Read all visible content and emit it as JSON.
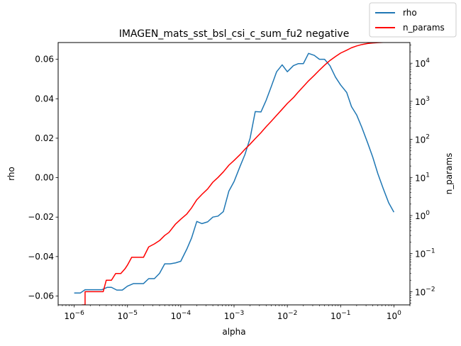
{
  "chart_data": {
    "type": "line",
    "title": "IMAGEN_mats_sst_bsl_csi_c_sum_fu2 negative",
    "xlabel": "alpha",
    "ylabel": "rho",
    "y2label": "n_params",
    "xscale": "log",
    "y2scale": "log",
    "xlim": [
      5e-07,
      2
    ],
    "ylim": [
      -0.0645,
      0.0685
    ],
    "y2lim": [
      0.0045,
      35000
    ],
    "grid": false,
    "legend_position": "top-right",
    "x_ticks": [
      {
        "base": "10",
        "exp": "−6"
      },
      {
        "base": "10",
        "exp": "−5"
      },
      {
        "base": "10",
        "exp": "−4"
      },
      {
        "base": "10",
        "exp": "−3"
      },
      {
        "base": "10",
        "exp": "−2"
      },
      {
        "base": "10",
        "exp": "−1"
      },
      {
        "base": "10",
        "exp": "0"
      }
    ],
    "y_ticks": [
      "0.06",
      "0.04",
      "0.02",
      "0.00",
      "−0.02",
      "−0.04",
      "−0.06"
    ],
    "y2_ticks": [
      {
        "base": "10",
        "exp": "4"
      },
      {
        "base": "10",
        "exp": "3"
      },
      {
        "base": "10",
        "exp": "2"
      },
      {
        "base": "10",
        "exp": "1"
      },
      {
        "base": "10",
        "exp": "0"
      },
      {
        "base": "10",
        "exp": "−1"
      },
      {
        "base": "10",
        "exp": "−2"
      }
    ],
    "series": [
      {
        "name": "rho",
        "color": "#1f77b4",
        "axis": "left",
        "points": [
          [
            1e-06,
            -0.0585
          ],
          [
            1.3e-06,
            -0.0585
          ],
          [
            1.6e-06,
            -0.0568
          ],
          [
            2e-06,
            -0.0568
          ],
          [
            2.6e-06,
            -0.0568
          ],
          [
            3.3e-06,
            -0.0568
          ],
          [
            4.2e-06,
            -0.0556
          ],
          [
            5e-06,
            -0.0556
          ],
          [
            6.3e-06,
            -0.057
          ],
          [
            8e-06,
            -0.057
          ],
          [
            1e-05,
            -0.055
          ],
          [
            1.3e-05,
            -0.0537
          ],
          [
            1.6e-05,
            -0.0537
          ],
          [
            2e-05,
            -0.0537
          ],
          [
            2.5e-05,
            -0.0512
          ],
          [
            3.2e-05,
            -0.0512
          ],
          [
            4e-05,
            -0.0485
          ],
          [
            5e-05,
            -0.0437
          ],
          [
            6.3e-05,
            -0.0437
          ],
          [
            8e-05,
            -0.0432
          ],
          [
            0.0001,
            -0.0424
          ],
          [
            0.00013,
            -0.0362
          ],
          [
            0.00016,
            -0.0305
          ],
          [
            0.0002,
            -0.0222
          ],
          [
            0.00025,
            -0.0233
          ],
          [
            0.00032,
            -0.0224
          ],
          [
            0.0004,
            -0.02
          ],
          [
            0.0005,
            -0.0195
          ],
          [
            0.00063,
            -0.0172
          ],
          [
            0.0008,
            -0.0068
          ],
          [
            0.001,
            -0.002
          ],
          [
            0.0013,
            0.0058
          ],
          [
            0.0016,
            0.0117
          ],
          [
            0.002,
            0.02
          ],
          [
            0.0025,
            0.0335
          ],
          [
            0.0032,
            0.0333
          ],
          [
            0.004,
            0.0392
          ],
          [
            0.005,
            0.0462
          ],
          [
            0.0063,
            0.0537
          ],
          [
            0.008,
            0.0572
          ],
          [
            0.01,
            0.0537
          ],
          [
            0.013,
            0.0568
          ],
          [
            0.016,
            0.0578
          ],
          [
            0.02,
            0.0578
          ],
          [
            0.025,
            0.063
          ],
          [
            0.032,
            0.062
          ],
          [
            0.04,
            0.06
          ],
          [
            0.05,
            0.06
          ],
          [
            0.063,
            0.0568
          ],
          [
            0.08,
            0.051
          ],
          [
            0.1,
            0.047
          ],
          [
            0.13,
            0.0432
          ],
          [
            0.16,
            0.036
          ],
          [
            0.2,
            0.0318
          ],
          [
            0.25,
            0.0255
          ],
          [
            0.32,
            0.0178
          ],
          [
            0.4,
            0.0105
          ],
          [
            0.5,
            0.002
          ],
          [
            0.63,
            -0.0055
          ],
          [
            0.8,
            -0.0128
          ],
          [
            1.0,
            -0.0175
          ]
        ]
      },
      {
        "name": "n_params",
        "color": "#ff0000",
        "axis": "right",
        "points": [
          [
            1.4e-06,
            0.0045
          ],
          [
            1.6e-06,
            0.0045
          ],
          [
            1.6e-06,
            0.01
          ],
          [
            2e-06,
            0.01
          ],
          [
            3.5e-06,
            0.01
          ],
          [
            4e-06,
            0.02
          ],
          [
            5e-06,
            0.02
          ],
          [
            6e-06,
            0.03
          ],
          [
            7.5e-06,
            0.03
          ],
          [
            9e-06,
            0.04
          ],
          [
            1e-05,
            0.05
          ],
          [
            1.2e-05,
            0.08
          ],
          [
            1.5e-05,
            0.08
          ],
          [
            2e-05,
            0.08
          ],
          [
            2.5e-05,
            0.15
          ],
          [
            3.2e-05,
            0.18
          ],
          [
            4e-05,
            0.22
          ],
          [
            5e-05,
            0.3
          ],
          [
            6e-05,
            0.36
          ],
          [
            8e-05,
            0.6
          ],
          [
            0.0001,
            0.8
          ],
          [
            0.00013,
            1.1
          ],
          [
            0.00016,
            1.6
          ],
          [
            0.0002,
            2.6
          ],
          [
            0.00025,
            3.6
          ],
          [
            0.00032,
            5.0
          ],
          [
            0.0004,
            7.5
          ],
          [
            0.0005,
            10
          ],
          [
            0.00063,
            14
          ],
          [
            0.0008,
            21
          ],
          [
            0.001,
            28
          ],
          [
            0.0013,
            40
          ],
          [
            0.0016,
            55
          ],
          [
            0.002,
            75
          ],
          [
            0.0025,
            105
          ],
          [
            0.0032,
            150
          ],
          [
            0.004,
            215
          ],
          [
            0.005,
            300
          ],
          [
            0.0063,
            430
          ],
          [
            0.008,
            620
          ],
          [
            0.01,
            880
          ],
          [
            0.013,
            1250
          ],
          [
            0.016,
            1750
          ],
          [
            0.02,
            2450
          ],
          [
            0.025,
            3450
          ],
          [
            0.032,
            4800
          ],
          [
            0.04,
            6600
          ],
          [
            0.05,
            8900
          ],
          [
            0.063,
            11800
          ],
          [
            0.08,
            15000
          ],
          [
            0.1,
            18500
          ],
          [
            0.13,
            22000
          ],
          [
            0.16,
            25500
          ],
          [
            0.2,
            28500
          ],
          [
            0.25,
            31000
          ],
          [
            0.32,
            33000
          ],
          [
            0.4,
            34000
          ],
          [
            0.5,
            34800
          ],
          [
            0.63,
            35300
          ],
          [
            0.8,
            35700
          ],
          [
            1.0,
            35900
          ]
        ]
      }
    ]
  }
}
